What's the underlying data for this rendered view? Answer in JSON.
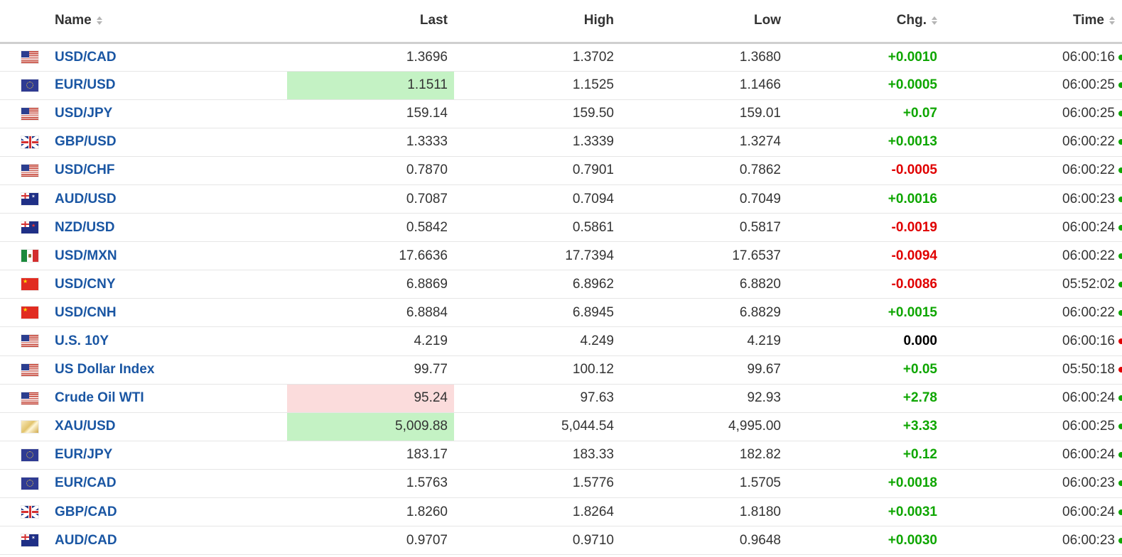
{
  "headers": {
    "name": "Name",
    "last": "Last",
    "high": "High",
    "low": "Low",
    "chg": "Chg.",
    "time": "Time"
  },
  "rows": [
    {
      "flag": "us-flag-icon",
      "name": "USD/CAD",
      "last": "1.3696",
      "high": "1.3702",
      "low": "1.3680",
      "chg": "+0.0010",
      "chg_dir": "pos",
      "time": "06:00:16",
      "status": "green",
      "highlight": ""
    },
    {
      "flag": "eu-flag-icon",
      "name": "EUR/USD",
      "last": "1.1511",
      "high": "1.1525",
      "low": "1.1466",
      "chg": "+0.0005",
      "chg_dir": "pos",
      "time": "06:00:25",
      "status": "green",
      "highlight": "up"
    },
    {
      "flag": "us-flag-icon",
      "name": "USD/JPY",
      "last": "159.14",
      "high": "159.50",
      "low": "159.01",
      "chg": "+0.07",
      "chg_dir": "pos",
      "time": "06:00:25",
      "status": "green",
      "highlight": ""
    },
    {
      "flag": "gb-flag-icon",
      "name": "GBP/USD",
      "last": "1.3333",
      "high": "1.3339",
      "low": "1.3274",
      "chg": "+0.0013",
      "chg_dir": "pos",
      "time": "06:00:22",
      "status": "green",
      "highlight": ""
    },
    {
      "flag": "us-flag-icon",
      "name": "USD/CHF",
      "last": "0.7870",
      "high": "0.7901",
      "low": "0.7862",
      "chg": "-0.0005",
      "chg_dir": "neg",
      "time": "06:00:22",
      "status": "green",
      "highlight": ""
    },
    {
      "flag": "au-flag-icon",
      "name": "AUD/USD",
      "last": "0.7087",
      "high": "0.7094",
      "low": "0.7049",
      "chg": "+0.0016",
      "chg_dir": "pos",
      "time": "06:00:23",
      "status": "green",
      "highlight": ""
    },
    {
      "flag": "nz-flag-icon",
      "name": "NZD/USD",
      "last": "0.5842",
      "high": "0.5861",
      "low": "0.5817",
      "chg": "-0.0019",
      "chg_dir": "neg",
      "time": "06:00:24",
      "status": "green",
      "highlight": ""
    },
    {
      "flag": "mx-flag-icon",
      "name": "USD/MXN",
      "last": "17.6636",
      "high": "17.7394",
      "low": "17.6537",
      "chg": "-0.0094",
      "chg_dir": "neg",
      "time": "06:00:22",
      "status": "green",
      "highlight": ""
    },
    {
      "flag": "cn-flag-icon",
      "name": "USD/CNY",
      "last": "6.8869",
      "high": "6.8962",
      "low": "6.8820",
      "chg": "-0.0086",
      "chg_dir": "neg",
      "time": "05:52:02",
      "status": "green",
      "highlight": ""
    },
    {
      "flag": "cn-flag-icon",
      "name": "USD/CNH",
      "last": "6.8884",
      "high": "6.8945",
      "low": "6.8829",
      "chg": "+0.0015",
      "chg_dir": "pos",
      "time": "06:00:22",
      "status": "green",
      "highlight": ""
    },
    {
      "flag": "us-flag-icon",
      "name": "U.S. 10Y",
      "last": "4.219",
      "high": "4.249",
      "low": "4.219",
      "chg": "0.000",
      "chg_dir": "zero",
      "time": "06:00:16",
      "status": "red",
      "highlight": ""
    },
    {
      "flag": "us-flag-icon",
      "name": "US Dollar Index",
      "last": "99.77",
      "high": "100.12",
      "low": "99.67",
      "chg": "+0.05",
      "chg_dir": "pos",
      "time": "05:50:18",
      "status": "red",
      "highlight": ""
    },
    {
      "flag": "us-flag-icon",
      "name": "Crude Oil WTI",
      "last": "95.24",
      "high": "97.63",
      "low": "92.93",
      "chg": "+2.78",
      "chg_dir": "pos",
      "time": "06:00:24",
      "status": "green",
      "highlight": "down"
    },
    {
      "flag": "gold-flag-icon",
      "name": "XAU/USD",
      "last": "5,009.88",
      "high": "5,044.54",
      "low": "4,995.00",
      "chg": "+3.33",
      "chg_dir": "pos",
      "time": "06:00:25",
      "status": "green",
      "highlight": "up"
    },
    {
      "flag": "eu-flag-icon",
      "name": "EUR/JPY",
      "last": "183.17",
      "high": "183.33",
      "low": "182.82",
      "chg": "+0.12",
      "chg_dir": "pos",
      "time": "06:00:24",
      "status": "green",
      "highlight": ""
    },
    {
      "flag": "eu-flag-icon",
      "name": "EUR/CAD",
      "last": "1.5763",
      "high": "1.5776",
      "low": "1.5705",
      "chg": "+0.0018",
      "chg_dir": "pos",
      "time": "06:00:23",
      "status": "green",
      "highlight": ""
    },
    {
      "flag": "gb-flag-icon",
      "name": "GBP/CAD",
      "last": "1.8260",
      "high": "1.8264",
      "low": "1.8180",
      "chg": "+0.0031",
      "chg_dir": "pos",
      "time": "06:00:24",
      "status": "green",
      "highlight": ""
    },
    {
      "flag": "au-flag-icon",
      "name": "AUD/CAD",
      "last": "0.9707",
      "high": "0.9710",
      "low": "0.9648",
      "chg": "+0.0030",
      "chg_dir": "pos",
      "time": "06:00:23",
      "status": "green",
      "highlight": ""
    }
  ],
  "colors": {
    "positive": "#0ea600",
    "negative": "#e00000",
    "link": "#1a56a3",
    "highlight_up": "#c4f2c4",
    "highlight_down": "#fbdcdc"
  }
}
